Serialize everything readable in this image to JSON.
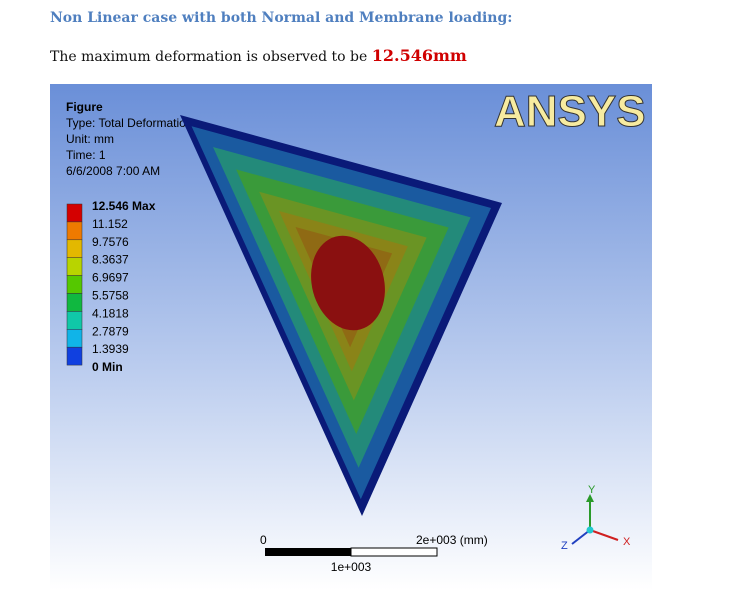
{
  "heading": "Non Linear case with both Normal and Membrane loading:",
  "sentence": {
    "text": "The maximum deformation is observed to be ",
    "highlight": "12.546mm"
  },
  "figure": {
    "info": [
      "Figure",
      "Type: Total Deformation",
      "Unit: mm",
      "Time: 1",
      "6/6/2008 7:00 AM"
    ],
    "legend": {
      "labels": [
        "12.546 Max",
        "11.152",
        "9.7576",
        "8.3637",
        "6.9697",
        "5.5758",
        "4.1818",
        "2.7879",
        "1.3939",
        "0 Min"
      ],
      "colors": [
        "#d40000",
        "#ee7a00",
        "#e3b800",
        "#b8d400",
        "#55c800",
        "#10b840",
        "#10c8a8",
        "#10b4e8",
        "#1040e0"
      ]
    },
    "logo": "ANSYS",
    "scale": {
      "start": "0",
      "end": "2e+003 (mm)",
      "mid": "1e+003"
    },
    "axes": {
      "y": "Y",
      "x": "X",
      "z": "Z"
    }
  }
}
